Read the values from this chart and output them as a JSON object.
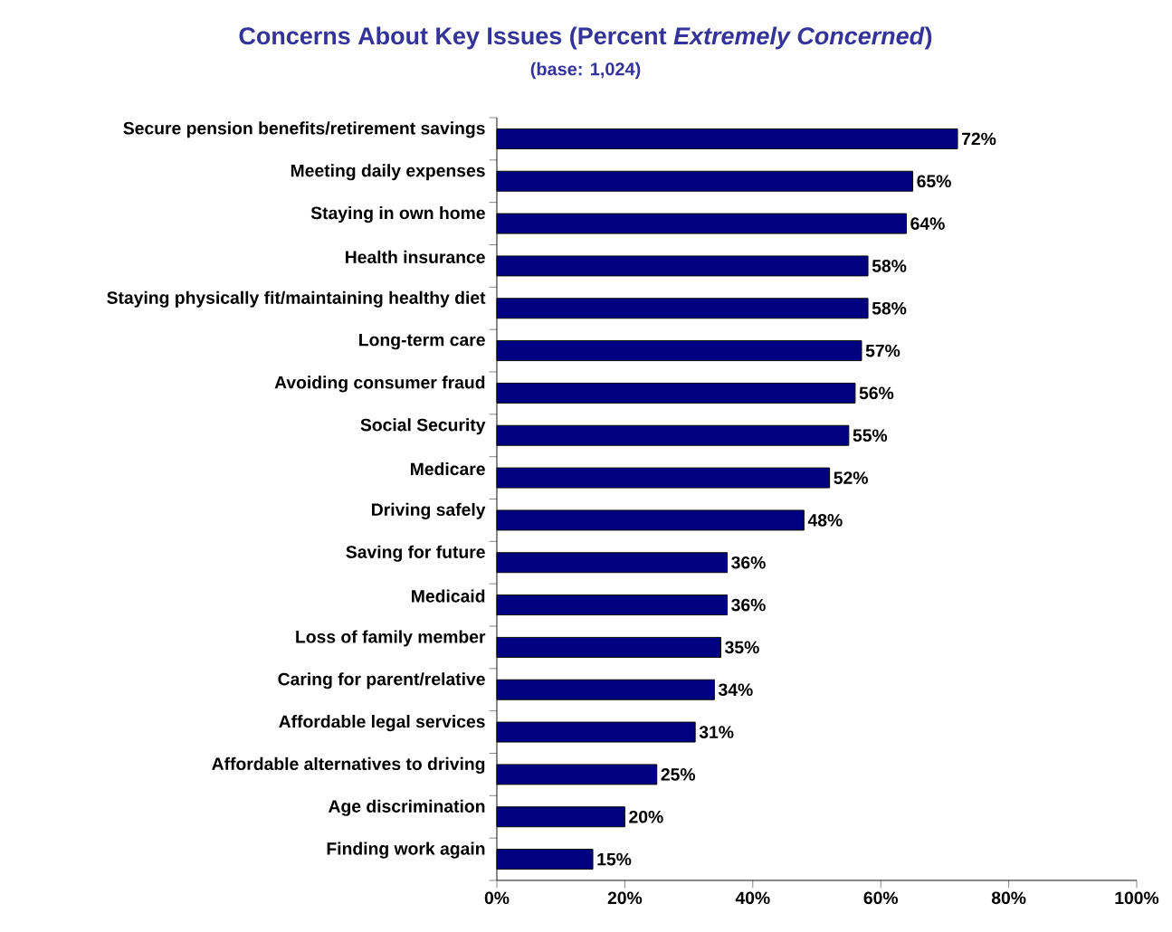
{
  "chart_data": {
    "type": "bar",
    "orientation": "horizontal",
    "title": "Concerns About Key Issues (Percent *Extremely Concerned*)",
    "subtitle": "(base: 1,024)",
    "categories": [
      "Secure pension benefits/retirement savings",
      "Meeting daily expenses",
      "Staying in own home",
      "Health insurance",
      "Staying physically fit/maintaining healthy diet",
      "Long-term care",
      "Avoiding consumer fraud",
      "Social Security",
      "Medicare",
      "Driving safely",
      "Saving for future",
      "Medicaid",
      "Loss of family member",
      "Caring for parent/relative",
      "Affordable legal services",
      "Affordable alternatives to driving",
      "Age discrimination",
      "Finding work again"
    ],
    "values": [
      72,
      65,
      64,
      58,
      58,
      57,
      56,
      55,
      52,
      48,
      36,
      36,
      35,
      34,
      31,
      25,
      20,
      15
    ],
    "value_labels": [
      "72%",
      "65%",
      "64%",
      "58%",
      "58%",
      "57%",
      "56%",
      "55%",
      "52%",
      "48%",
      "36%",
      "36%",
      "35%",
      "34%",
      "31%",
      "25%",
      "20%",
      "15%"
    ],
    "color": "#000080",
    "xlim": [
      0,
      100
    ],
    "xticks": [
      {
        "value": 0,
        "label": "0%"
      },
      {
        "value": 20,
        "label": "20%"
      },
      {
        "value": 40,
        "label": "40%"
      },
      {
        "value": 60,
        "label": "60%"
      },
      {
        "value": 80,
        "label": "80%"
      },
      {
        "value": 100,
        "label": "100%"
      }
    ]
  }
}
